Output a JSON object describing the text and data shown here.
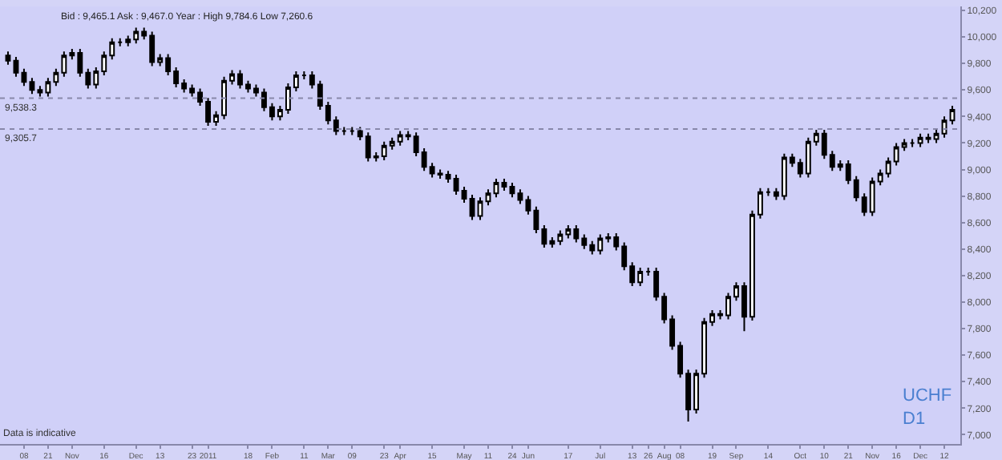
{
  "chart_data": {
    "type": "candlestick",
    "categories": [
      null,
      null,
      "08",
      null,
      null,
      "21",
      null,
      null,
      "Nov",
      null,
      null,
      null,
      "16",
      null,
      null,
      null,
      "Dec",
      null,
      null,
      "13",
      null,
      null,
      null,
      "23",
      null,
      "2011",
      null,
      null,
      null,
      null,
      "18",
      null,
      null,
      "Feb",
      null,
      null,
      null,
      "11",
      null,
      null,
      "Mar",
      null,
      null,
      "09",
      null,
      null,
      null,
      "23",
      null,
      "Apr",
      null,
      null,
      null,
      "15",
      null,
      null,
      null,
      "May",
      null,
      null,
      "11",
      null,
      null,
      "24",
      null,
      "Jun",
      null,
      null,
      null,
      null,
      "17",
      null,
      null,
      null,
      "Jul",
      null,
      null,
      null,
      "13",
      null,
      "26",
      null,
      "Aug",
      null,
      "08",
      null,
      null,
      null,
      "19",
      null,
      null,
      "Sep",
      null,
      null,
      null,
      "14",
      null,
      null,
      null,
      "Oct",
      null,
      null,
      "10",
      null,
      null,
      "21",
      null,
      null,
      "Nov",
      null,
      null,
      "16",
      null,
      null,
      "Dec",
      null,
      null,
      "12",
      null
    ],
    "ohlc": [
      [
        9860,
        9890,
        9790,
        9820
      ],
      [
        9820,
        9850,
        9700,
        9730
      ],
      [
        9730,
        9760,
        9630,
        9660
      ],
      [
        9660,
        9690,
        9570,
        9600
      ],
      [
        9600,
        9630,
        9550,
        9580
      ],
      [
        9580,
        9690,
        9550,
        9660
      ],
      [
        9660,
        9760,
        9630,
        9730
      ],
      [
        9730,
        9890,
        9700,
        9860
      ],
      [
        9860,
        9910,
        9830,
        9880
      ],
      [
        9880,
        9910,
        9700,
        9730
      ],
      [
        9730,
        9760,
        9610,
        9640
      ],
      [
        9640,
        9770,
        9610,
        9740
      ],
      [
        9740,
        9890,
        9710,
        9860
      ],
      [
        9860,
        9990,
        9830,
        9960
      ],
      [
        9960,
        9990,
        9930,
        9960
      ],
      [
        9960,
        10010,
        9930,
        9980
      ],
      [
        9980,
        10070,
        9950,
        10040
      ],
      [
        10040,
        10070,
        9980,
        10010
      ],
      [
        10010,
        10040,
        9780,
        9810
      ],
      [
        9810,
        9870,
        9780,
        9840
      ],
      [
        9840,
        9870,
        9710,
        9740
      ],
      [
        9740,
        9770,
        9620,
        9650
      ],
      [
        9650,
        9680,
        9580,
        9610
      ],
      [
        9610,
        9640,
        9550,
        9580
      ],
      [
        9580,
        9610,
        9480,
        9510
      ],
      [
        9510,
        9540,
        9330,
        9360
      ],
      [
        9360,
        9440,
        9330,
        9410
      ],
      [
        9410,
        9700,
        9380,
        9670
      ],
      [
        9670,
        9750,
        9640,
        9720
      ],
      [
        9720,
        9750,
        9610,
        9640
      ],
      [
        9640,
        9670,
        9580,
        9610
      ],
      [
        9610,
        9640,
        9550,
        9580
      ],
      [
        9580,
        9610,
        9440,
        9470
      ],
      [
        9470,
        9500,
        9370,
        9400
      ],
      [
        9400,
        9480,
        9370,
        9450
      ],
      [
        9450,
        9650,
        9420,
        9620
      ],
      [
        9620,
        9740,
        9590,
        9710
      ],
      [
        9710,
        9740,
        9680,
        9710
      ],
      [
        9710,
        9740,
        9610,
        9640
      ],
      [
        9640,
        9670,
        9450,
        9480
      ],
      [
        9480,
        9510,
        9340,
        9370
      ],
      [
        9370,
        9400,
        9260,
        9290
      ],
      [
        9290,
        9320,
        9260,
        9290
      ],
      [
        9290,
        9320,
        9260,
        9290
      ],
      [
        9290,
        9320,
        9220,
        9250
      ],
      [
        9250,
        9280,
        9060,
        9090
      ],
      [
        9090,
        9130,
        9060,
        9100
      ],
      [
        9100,
        9210,
        9070,
        9180
      ],
      [
        9180,
        9240,
        9150,
        9210
      ],
      [
        9210,
        9290,
        9180,
        9260
      ],
      [
        9260,
        9290,
        9220,
        9250
      ],
      [
        9250,
        9280,
        9100,
        9130
      ],
      [
        9130,
        9160,
        8990,
        9020
      ],
      [
        9020,
        9050,
        8940,
        8970
      ],
      [
        8970,
        9000,
        8930,
        8960
      ],
      [
        8960,
        8990,
        8900,
        8930
      ],
      [
        8930,
        8960,
        8810,
        8840
      ],
      [
        8840,
        8870,
        8750,
        8780
      ],
      [
        8780,
        8810,
        8620,
        8650
      ],
      [
        8650,
        8790,
        8620,
        8760
      ],
      [
        8760,
        8850,
        8730,
        8820
      ],
      [
        8820,
        8930,
        8790,
        8900
      ],
      [
        8900,
        8930,
        8840,
        8870
      ],
      [
        8870,
        8900,
        8790,
        8820
      ],
      [
        8820,
        8850,
        8740,
        8770
      ],
      [
        8770,
        8800,
        8660,
        8690
      ],
      [
        8690,
        8720,
        8520,
        8550
      ],
      [
        8550,
        8580,
        8410,
        8440
      ],
      [
        8440,
        8490,
        8410,
        8460
      ],
      [
        8460,
        8540,
        8430,
        8510
      ],
      [
        8510,
        8580,
        8480,
        8550
      ],
      [
        8550,
        8580,
        8450,
        8480
      ],
      [
        8480,
        8510,
        8400,
        8430
      ],
      [
        8430,
        8460,
        8360,
        8390
      ],
      [
        8390,
        8510,
        8360,
        8480
      ],
      [
        8480,
        8520,
        8450,
        8490
      ],
      [
        8490,
        8520,
        8390,
        8420
      ],
      [
        8420,
        8450,
        8240,
        8270
      ],
      [
        8270,
        8300,
        8120,
        8150
      ],
      [
        8150,
        8260,
        8120,
        8230
      ],
      [
        8230,
        8260,
        8200,
        8230
      ],
      [
        8230,
        8260,
        8010,
        8040
      ],
      [
        8040,
        8070,
        7840,
        7870
      ],
      [
        7870,
        7900,
        7640,
        7670
      ],
      [
        7670,
        7700,
        7430,
        7460
      ],
      [
        7460,
        7490,
        7100,
        7190
      ],
      [
        7190,
        7490,
        7160,
        7460
      ],
      [
        7460,
        7880,
        7430,
        7850
      ],
      [
        7850,
        7940,
        7820,
        7910
      ],
      [
        7910,
        7940,
        7870,
        7900
      ],
      [
        7900,
        8070,
        7870,
        8040
      ],
      [
        8040,
        8150,
        8010,
        8120
      ],
      [
        8120,
        8150,
        7780,
        7890
      ],
      [
        7890,
        8690,
        7860,
        8660
      ],
      [
        8660,
        8860,
        8630,
        8830
      ],
      [
        8830,
        8860,
        8800,
        8830
      ],
      [
        8830,
        8860,
        8770,
        8800
      ],
      [
        8800,
        9120,
        8770,
        9090
      ],
      [
        9090,
        9120,
        9020,
        9050
      ],
      [
        9050,
        9080,
        8940,
        8970
      ],
      [
        8970,
        9240,
        8940,
        9210
      ],
      [
        9210,
        9300,
        9180,
        9270
      ],
      [
        9270,
        9300,
        9080,
        9110
      ],
      [
        9110,
        9140,
        8990,
        9020
      ],
      [
        9020,
        9070,
        8990,
        9040
      ],
      [
        9040,
        9070,
        8890,
        8920
      ],
      [
        8920,
        8950,
        8760,
        8790
      ],
      [
        8790,
        8820,
        8650,
        8680
      ],
      [
        8680,
        8940,
        8650,
        8910
      ],
      [
        8910,
        9000,
        8880,
        8970
      ],
      [
        8970,
        9090,
        8940,
        9060
      ],
      [
        9060,
        9200,
        9030,
        9170
      ],
      [
        9170,
        9230,
        9140,
        9200
      ],
      [
        9200,
        9230,
        9170,
        9200
      ],
      [
        9200,
        9270,
        9170,
        9240
      ],
      [
        9240,
        9270,
        9200,
        9230
      ],
      [
        9230,
        9300,
        9200,
        9270
      ],
      [
        9270,
        9400,
        9240,
        9370
      ],
      [
        9370,
        9480,
        9340,
        9450
      ]
    ],
    "ylim": [
      6930,
      10230
    ],
    "yticks": [
      {
        "value": 7000,
        "label": "7,000"
      },
      {
        "value": 7200,
        "label": "7,200"
      },
      {
        "value": 7400,
        "label": "7,400"
      },
      {
        "value": 7600,
        "label": "7,600"
      },
      {
        "value": 7800,
        "label": "7,800"
      },
      {
        "value": 8000,
        "label": "8,000"
      },
      {
        "value": 8200,
        "label": "8,200"
      },
      {
        "value": 8400,
        "label": "8,400"
      },
      {
        "value": 8600,
        "label": "8,600"
      },
      {
        "value": 8800,
        "label": "8,800"
      },
      {
        "value": 9000,
        "label": "9,000"
      },
      {
        "value": 9200,
        "label": "9,200"
      },
      {
        "value": 9400,
        "label": "9,400"
      },
      {
        "value": 9600,
        "label": "9,600"
      },
      {
        "value": 9800,
        "label": "9,800"
      },
      {
        "value": 10000,
        "label": "10,000"
      },
      {
        "value": 10200,
        "label": "10,200"
      }
    ],
    "ref_lines": [
      {
        "axis": "y",
        "value": 9538.3,
        "label": "9,538.3",
        "line_style": "dotted",
        "color": "#8888aa"
      },
      {
        "axis": "y",
        "value": 9305.7,
        "label": "9,305.7",
        "line_style": "dotted",
        "color": "#8888aa"
      }
    ],
    "annotations": [
      "Bid : 9,465.1 Ask : 9,467.0 Year : High 9,784.6 Low 7,260.6",
      "Data is indicative",
      "UCHF\nD1"
    ],
    "grid": false
  }
}
